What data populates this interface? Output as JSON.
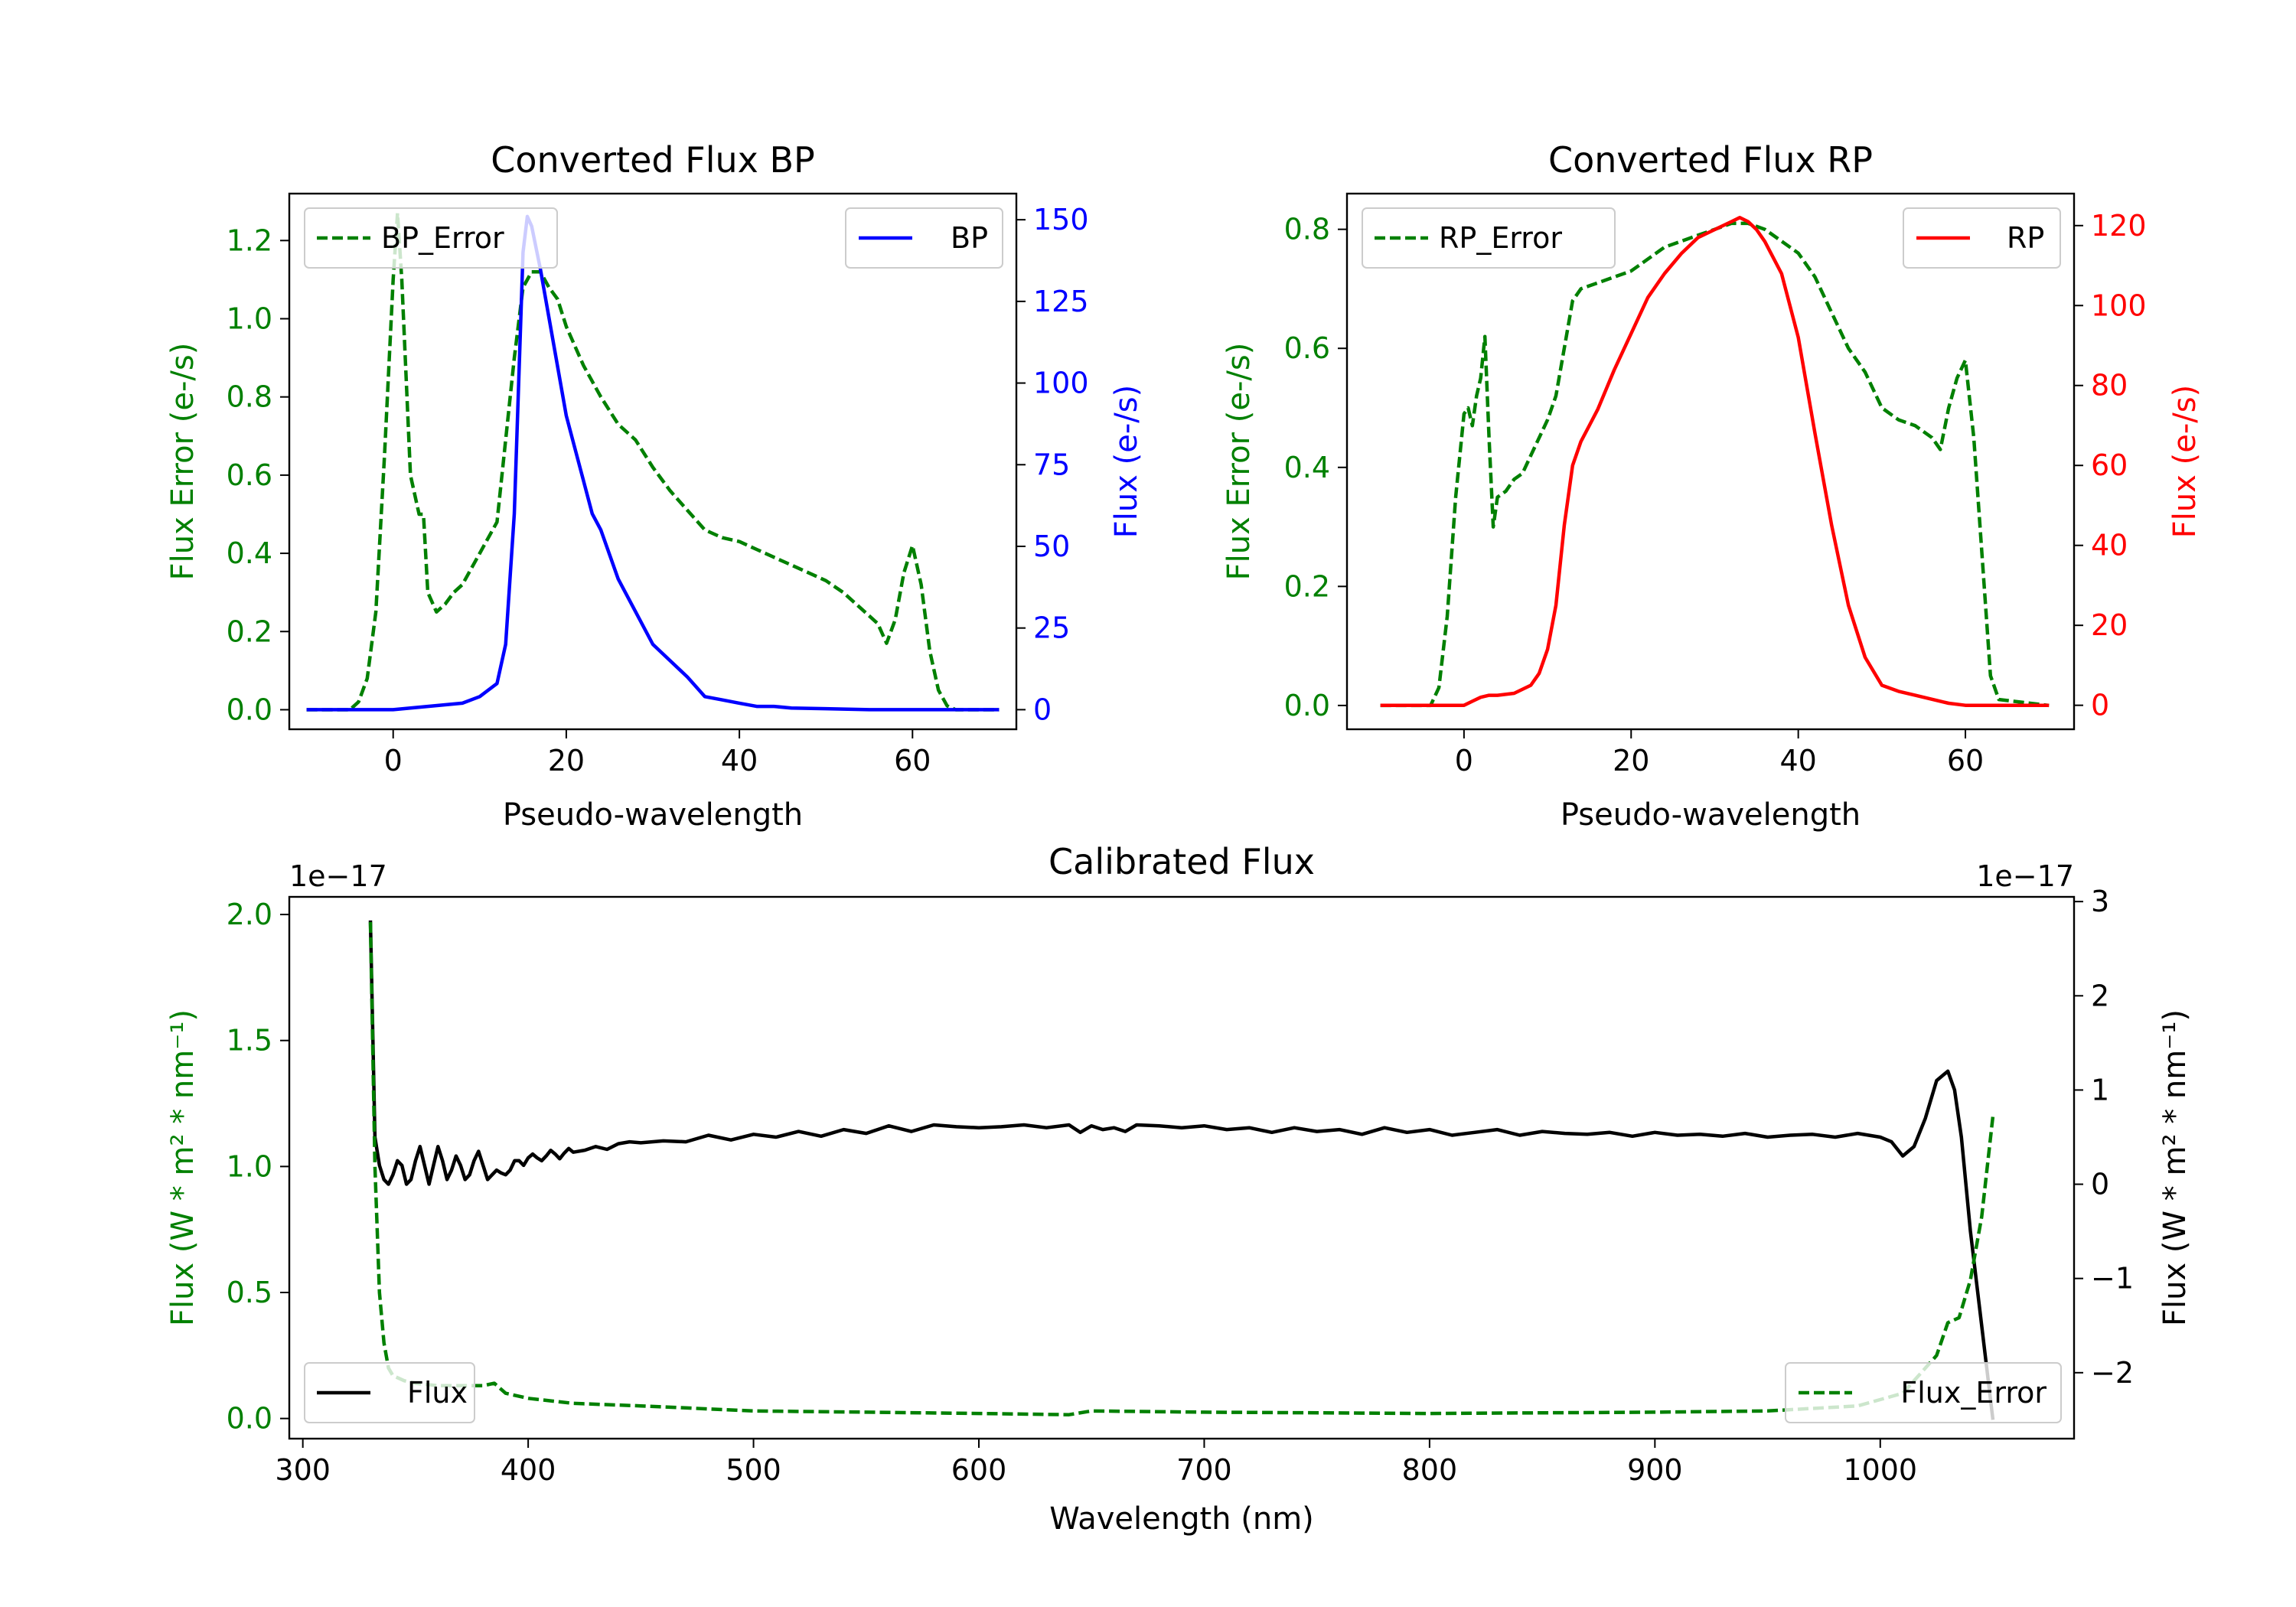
{
  "chart_data": [
    {
      "type": "line",
      "title": "Converted Flux BP",
      "xlabel": "Pseudo-wavelength",
      "ylabel": "Flux Error (e-/s)",
      "ylabel_right": "Flux (e-/s)",
      "xlim": [
        -12,
        72
      ],
      "ylim": [
        -0.05,
        1.32
      ],
      "ylim_right": [
        -6,
        158
      ],
      "x_ticks": [
        "0",
        "20",
        "40",
        "60"
      ],
      "y_ticks": [
        "0.0",
        "0.2",
        "0.4",
        "0.6",
        "0.8",
        "1.0",
        "1.2"
      ],
      "y_ticks_right": [
        "0",
        "25",
        "50",
        "75",
        "100",
        "125",
        "150"
      ],
      "series": [
        {
          "name": "BP_Error",
          "axis": "left",
          "style": "dashed",
          "color": "#008000",
          "x": [
            -10,
            -5,
            -4,
            -3,
            -2,
            -1,
            0,
            0.5,
            1,
            2,
            3,
            3.5,
            4,
            5,
            6,
            7,
            8,
            10,
            12,
            14,
            15,
            16,
            17,
            18,
            19,
            20,
            22,
            24,
            26,
            28,
            30,
            32,
            34,
            36,
            38,
            40,
            42,
            44,
            46,
            48,
            50,
            52,
            54,
            56,
            57,
            58,
            59,
            60,
            61,
            62,
            63,
            64,
            65,
            70
          ],
          "y": [
            0,
            0,
            0.02,
            0.08,
            0.25,
            0.65,
            1.1,
            1.27,
            1.1,
            0.6,
            0.5,
            0.5,
            0.3,
            0.25,
            0.27,
            0.3,
            0.32,
            0.4,
            0.48,
            0.9,
            1.08,
            1.12,
            1.12,
            1.08,
            1.05,
            0.98,
            0.88,
            0.8,
            0.73,
            0.69,
            0.62,
            0.56,
            0.51,
            0.46,
            0.44,
            0.43,
            0.41,
            0.39,
            0.37,
            0.35,
            0.33,
            0.3,
            0.26,
            0.22,
            0.17,
            0.23,
            0.35,
            0.42,
            0.32,
            0.15,
            0.05,
            0.01,
            0,
            0
          ]
        },
        {
          "name": "BP",
          "axis": "right",
          "style": "solid",
          "color": "#0000ff",
          "x": [
            -10,
            0,
            2,
            4,
            6,
            8,
            10,
            12,
            13,
            14,
            14.5,
            15,
            15.5,
            16,
            17,
            18,
            19,
            20,
            21,
            22,
            23,
            24,
            26,
            28,
            30,
            32,
            34,
            36,
            38,
            40,
            42,
            44,
            46,
            50,
            55,
            60,
            65,
            70
          ],
          "y": [
            0,
            0,
            0.5,
            1,
            1.5,
            2,
            4,
            8,
            20,
            60,
            100,
            140,
            151,
            148,
            135,
            120,
            105,
            90,
            80,
            70,
            60,
            55,
            40,
            30,
            20,
            15,
            10,
            4,
            3,
            2,
            1,
            1,
            0.5,
            0.3,
            0,
            0,
            0,
            0
          ]
        }
      ],
      "legend": [
        {
          "label": "BP_Error",
          "position": "upper-left"
        },
        {
          "label": "BP",
          "position": "upper-right"
        }
      ]
    },
    {
      "type": "line",
      "title": "Converted Flux RP",
      "xlabel": "Pseudo-wavelength",
      "ylabel": "Flux Error (e-/s)",
      "ylabel_right": "Flux (e-/s)",
      "xlim": [
        -14,
        73
      ],
      "ylim": [
        -0.04,
        0.86
      ],
      "ylim_right": [
        -6,
        128
      ],
      "x_ticks": [
        "0",
        "20",
        "40",
        "60"
      ],
      "y_ticks": [
        "0.0",
        "0.2",
        "0.4",
        "0.6",
        "0.8"
      ],
      "y_ticks_right": [
        "0",
        "20",
        "40",
        "60",
        "80",
        "100",
        "120"
      ],
      "series": [
        {
          "name": "RP_Error",
          "axis": "left",
          "style": "dashed",
          "color": "#008000",
          "x": [
            -10,
            -4,
            -3,
            -2,
            -1,
            0,
            0.5,
            1,
            1.5,
            2,
            2.5,
            3,
            3.5,
            4,
            5,
            6,
            7,
            8,
            10,
            11,
            12,
            13,
            14,
            16,
            18,
            20,
            22,
            24,
            26,
            28,
            30,
            32,
            34,
            36,
            38,
            40,
            42,
            44,
            46,
            48,
            50,
            52,
            54,
            55,
            56,
            57,
            58,
            59,
            60,
            61,
            62,
            63,
            64,
            70
          ],
          "y": [
            0,
            0,
            0.03,
            0.15,
            0.35,
            0.49,
            0.5,
            0.47,
            0.52,
            0.55,
            0.62,
            0.45,
            0.3,
            0.35,
            0.36,
            0.38,
            0.39,
            0.42,
            0.48,
            0.52,
            0.6,
            0.68,
            0.7,
            0.71,
            0.72,
            0.73,
            0.75,
            0.77,
            0.78,
            0.79,
            0.8,
            0.81,
            0.81,
            0.8,
            0.78,
            0.76,
            0.72,
            0.66,
            0.6,
            0.56,
            0.5,
            0.48,
            0.47,
            0.46,
            0.45,
            0.43,
            0.5,
            0.55,
            0.58,
            0.45,
            0.25,
            0.05,
            0.01,
            0
          ]
        },
        {
          "name": "RP",
          "axis": "right",
          "style": "solid",
          "color": "#ff0000",
          "x": [
            -10,
            0,
            1,
            2,
            3,
            4,
            6,
            8,
            9,
            10,
            11,
            12,
            13,
            14,
            15,
            16,
            18,
            20,
            22,
            24,
            26,
            28,
            30,
            32,
            33,
            34,
            35,
            36,
            38,
            40,
            42,
            44,
            46,
            48,
            50,
            52,
            54,
            56,
            58,
            60,
            65,
            70
          ],
          "y": [
            0,
            0,
            1,
            2,
            2.5,
            2.5,
            3,
            5,
            8,
            14,
            25,
            45,
            60,
            66,
            70,
            74,
            84,
            93,
            102,
            108,
            113,
            117,
            119,
            121,
            122,
            121,
            119,
            116,
            108,
            92,
            68,
            45,
            25,
            12,
            5,
            3.5,
            2.5,
            1.5,
            0.5,
            0,
            0,
            0
          ]
        }
      ],
      "legend": [
        {
          "label": "RP_Error",
          "position": "upper-left"
        },
        {
          "label": "RP",
          "position": "upper-right"
        }
      ]
    },
    {
      "type": "line",
      "title": "Calibrated Flux",
      "xlabel": "Wavelength (nm)",
      "ylabel": "Flux (W * m² * nm⁻¹)",
      "ylabel_right": "Flux (W * m² * nm⁻¹)",
      "offset_left": "1e−17",
      "offset_right": "1e−17",
      "xlim": [
        294,
        1086
      ],
      "ylim": [
        -0.08,
        2.07
      ],
      "ylim_right": [
        -2.7,
        3.05
      ],
      "x_ticks": [
        "300",
        "400",
        "500",
        "600",
        "700",
        "800",
        "900",
        "1000"
      ],
      "y_ticks": [
        "0.0",
        "0.5",
        "1.0",
        "1.5",
        "2.0"
      ],
      "y_ticks_right": [
        "−2",
        "−1",
        "0",
        "1",
        "2",
        "3"
      ],
      "series": [
        {
          "name": "Flux",
          "axis": "right",
          "style": "solid",
          "color": "#000000",
          "x": [
            330,
            332,
            334,
            336,
            338,
            340,
            342,
            344,
            346,
            348,
            350,
            352,
            354,
            356,
            358,
            360,
            362,
            364,
            366,
            368,
            370,
            372,
            374,
            376,
            378,
            380,
            382,
            384,
            386,
            388,
            390,
            392,
            394,
            396,
            398,
            400,
            402,
            404,
            406,
            408,
            410,
            412,
            414,
            416,
            418,
            420,
            425,
            430,
            435,
            440,
            445,
            450,
            460,
            470,
            480,
            490,
            500,
            510,
            520,
            530,
            540,
            550,
            560,
            570,
            580,
            590,
            600,
            610,
            620,
            630,
            640,
            645,
            650,
            655,
            660,
            665,
            670,
            680,
            690,
            700,
            710,
            720,
            730,
            740,
            750,
            760,
            770,
            780,
            790,
            800,
            810,
            820,
            830,
            840,
            850,
            860,
            870,
            880,
            890,
            900,
            910,
            920,
            930,
            940,
            950,
            960,
            970,
            980,
            990,
            1000,
            1005,
            1010,
            1015,
            1020,
            1025,
            1030,
            1033,
            1036,
            1040,
            1045,
            1050
          ],
          "y": [
            2.8,
            0.5,
            0.2,
            0.05,
            0,
            0.1,
            0.25,
            0.2,
            0.0,
            0.05,
            0.25,
            0.4,
            0.2,
            0.0,
            0.2,
            0.4,
            0.25,
            0.05,
            0.15,
            0.3,
            0.2,
            0.05,
            0.1,
            0.25,
            0.35,
            0.2,
            0.05,
            0.1,
            0.15,
            0.12,
            0.1,
            0.15,
            0.25,
            0.25,
            0.2,
            0.28,
            0.32,
            0.28,
            0.25,
            0.3,
            0.36,
            0.32,
            0.27,
            0.33,
            0.38,
            0.34,
            0.36,
            0.4,
            0.37,
            0.43,
            0.45,
            0.44,
            0.46,
            0.45,
            0.52,
            0.47,
            0.53,
            0.5,
            0.56,
            0.51,
            0.58,
            0.54,
            0.62,
            0.56,
            0.63,
            0.61,
            0.6,
            0.61,
            0.63,
            0.6,
            0.63,
            0.55,
            0.62,
            0.58,
            0.6,
            0.56,
            0.63,
            0.62,
            0.6,
            0.62,
            0.58,
            0.6,
            0.55,
            0.6,
            0.56,
            0.58,
            0.53,
            0.6,
            0.55,
            0.58,
            0.52,
            0.55,
            0.58,
            0.52,
            0.56,
            0.54,
            0.53,
            0.55,
            0.51,
            0.55,
            0.52,
            0.53,
            0.51,
            0.54,
            0.5,
            0.52,
            0.53,
            0.5,
            0.54,
            0.5,
            0.45,
            0.3,
            0.4,
            0.7,
            1.1,
            1.2,
            1.0,
            0.5,
            -0.5,
            -1.5,
            -2.5
          ]
        },
        {
          "name": "Flux_Error",
          "axis": "left",
          "style": "dashed",
          "color": "#008000",
          "x": [
            330,
            332,
            334,
            336,
            338,
            340,
            345,
            350,
            360,
            370,
            380,
            385,
            390,
            400,
            420,
            450,
            500,
            550,
            600,
            640,
            650,
            700,
            800,
            900,
            950,
            990,
            1010,
            1020,
            1025,
            1030,
            1035,
            1040,
            1045,
            1050
          ],
          "y": [
            1.97,
            1.0,
            0.5,
            0.3,
            0.2,
            0.17,
            0.15,
            0.14,
            0.13,
            0.13,
            0.13,
            0.14,
            0.1,
            0.08,
            0.06,
            0.05,
            0.03,
            0.025,
            0.02,
            0.015,
            0.03,
            0.025,
            0.02,
            0.025,
            0.03,
            0.05,
            0.1,
            0.2,
            0.25,
            0.38,
            0.4,
            0.55,
            0.8,
            1.2
          ]
        }
      ],
      "legend": [
        {
          "label": "Flux",
          "position": "lower-left"
        },
        {
          "label": "Flux_Error",
          "position": "lower-right"
        }
      ]
    }
  ]
}
